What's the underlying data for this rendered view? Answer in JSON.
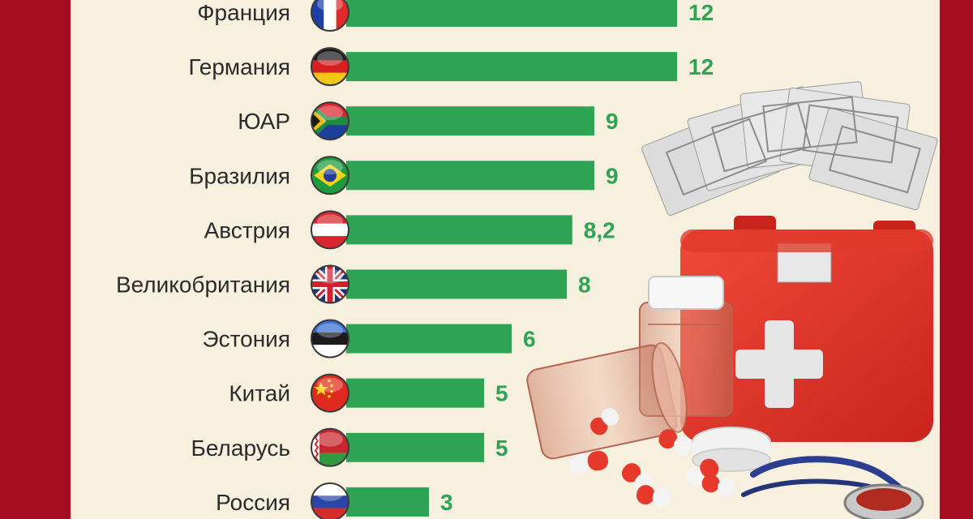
{
  "chart_data": {
    "type": "bar",
    "orientation": "horizontal",
    "categories": [
      "Франция",
      "Германия",
      "ЮАР",
      "Бразилия",
      "Австрия",
      "Великобритания",
      "Эстония",
      "Китай",
      "Беларусь",
      "Россия"
    ],
    "values": [
      12,
      12,
      9,
      9,
      8.2,
      8,
      6,
      5,
      5,
      3
    ],
    "value_labels": [
      "12",
      "12",
      "9",
      "9",
      "8,2",
      "8",
      "6",
      "5",
      "5",
      "3"
    ],
    "flag_icons": [
      "flag-france-icon",
      "flag-germany-icon",
      "flag-south-africa-icon",
      "flag-brazil-icon",
      "flag-austria-icon",
      "flag-uk-icon",
      "flag-estonia-icon",
      "flag-china-icon",
      "flag-belarus-icon",
      "flag-russia-icon"
    ],
    "title": "",
    "xlabel": "",
    "ylabel": "",
    "grid": false,
    "legend": "none"
  },
  "colors": {
    "bar": "#2ea353",
    "value_text": "#2ea353",
    "label_text": "#2b2b2b",
    "background": "#f8f0df",
    "frame": "#a50d1f"
  },
  "decoration": "first-aid-kit-with-banknotes-pills-and-stethoscope"
}
